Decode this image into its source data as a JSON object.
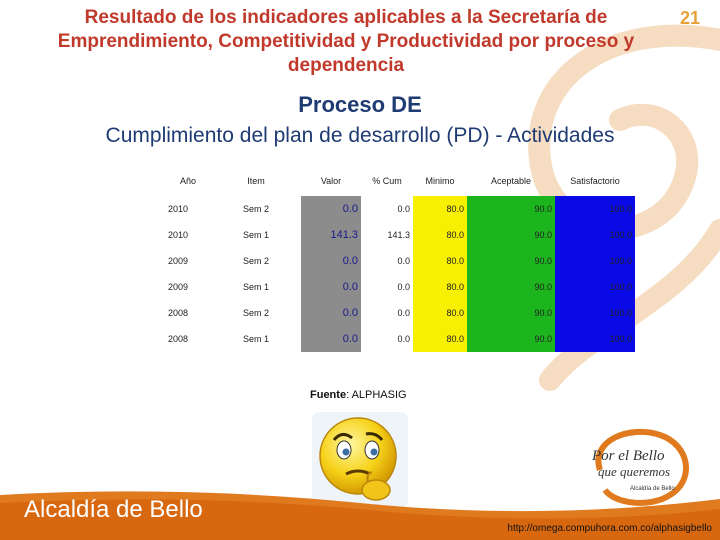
{
  "slide": {
    "title": "Resultado de los indicadores aplicables a la Secretaría de Emprendimiento, Competitividad y Productividad por proceso y dependencia",
    "page_number": "21",
    "subtitle": "Proceso DE",
    "heading": "Cumplimiento del plan de desarrollo (PD) - Actividades"
  },
  "table": {
    "headers": [
      "Año",
      "Item",
      "Valor",
      "% Cum",
      "Minimo",
      "Aceptable",
      "Satisfactorio"
    ],
    "rows": [
      [
        "2010",
        "Sem 2",
        "0.0",
        "0.0",
        "80.0",
        "90.0",
        "100.0"
      ],
      [
        "2010",
        "Sem 1",
        "141.3",
        "141.3",
        "80.0",
        "90.0",
        "100.0"
      ],
      [
        "2009",
        "Sem 2",
        "0.0",
        "0.0",
        "80.0",
        "90.0",
        "100.0"
      ],
      [
        "2009",
        "Sem 1",
        "0.0",
        "0.0",
        "80.0",
        "90.0",
        "100.0"
      ],
      [
        "2008",
        "Sem 2",
        "0.0",
        "0.0",
        "80.0",
        "90.0",
        "100.0"
      ],
      [
        "2008",
        "Sem 1",
        "0.0",
        "0.0",
        "80.0",
        "90.0",
        "100.0"
      ]
    ]
  },
  "source": {
    "label": "Fuente",
    "value": ": ALPHASIG"
  },
  "footer": {
    "brand": "Alcaldía de Bello",
    "url": "http://omega.compuhora.com.co/alphasigbello",
    "logo_line1": "Por el Bello",
    "logo_line2": "que queremos",
    "logo_line3": "Alcaldía de Bello"
  },
  "colors": {
    "title": "#c0392b",
    "heading": "#1f3b73",
    "valor_cell": "#8c8c8c",
    "minimo": "#f7f000",
    "aceptable": "#1db51d",
    "satisfactorio": "#0a0ae6",
    "footer": "#e07a1f"
  },
  "icons": {
    "emoji": "thinking-face-icon",
    "swirl": "swirl-decoration"
  }
}
